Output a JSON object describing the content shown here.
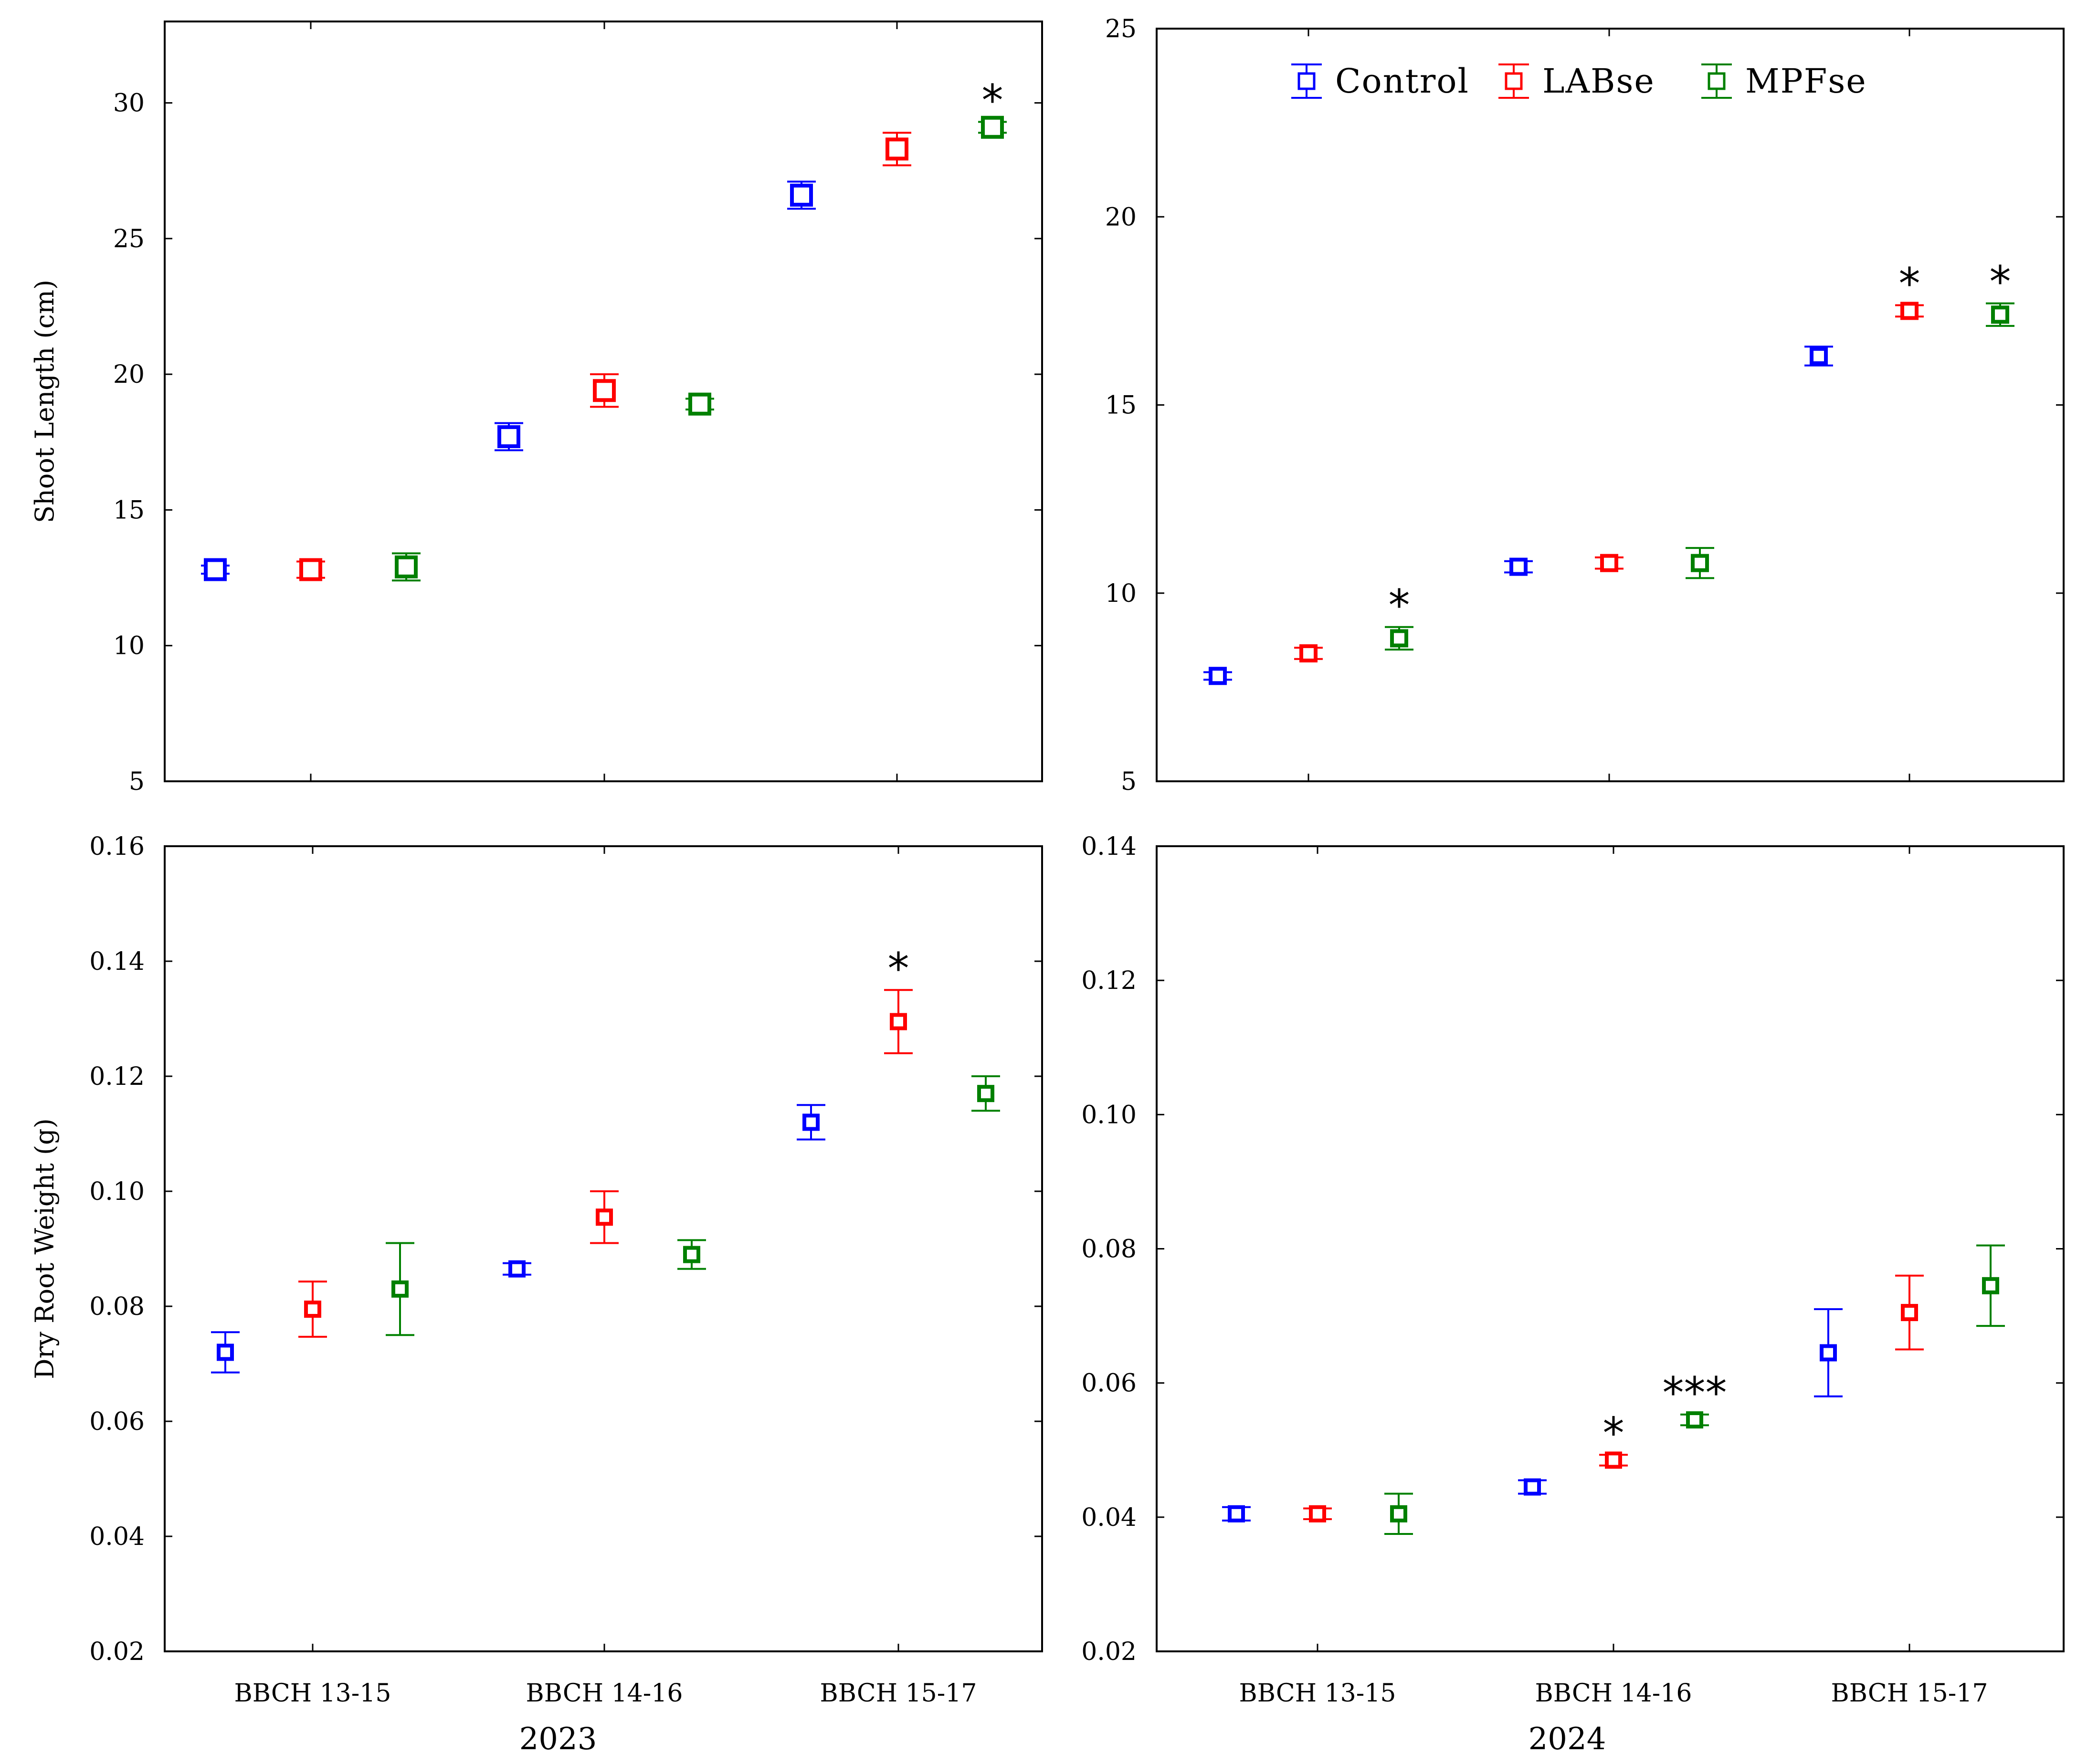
{
  "colors": {
    "Control": "#0000ff",
    "LABse": "#ff0000",
    "MPFse": "#008000",
    "axis": "#000000"
  },
  "legend": [
    "Control",
    "LABse",
    "MPFse"
  ],
  "chart_data": [
    {
      "id": "p2023_shoot",
      "type": "scatter",
      "ylabel": "Shoot Length (cm)",
      "ylim": [
        5,
        33
      ],
      "yticks": [
        5,
        10,
        15,
        20,
        25,
        30
      ],
      "categories": [
        "BBCH 13-15",
        "BBCH 14-16",
        "BBCH 15-17"
      ],
      "series": [
        {
          "name": "Control",
          "values": [
            12.8,
            17.7,
            26.6
          ],
          "err": [
            0.15,
            0.5,
            0.5
          ],
          "sig": [
            "",
            "",
            ""
          ]
        },
        {
          "name": "LABse",
          "values": [
            12.8,
            19.4,
            28.3
          ],
          "err": [
            0.3,
            0.6,
            0.6
          ],
          "sig": [
            "",
            "",
            ""
          ]
        },
        {
          "name": "MPFse",
          "values": [
            12.9,
            18.9,
            29.1
          ],
          "err": [
            0.5,
            0.2,
            0.2
          ],
          "sig": [
            "",
            "",
            "*"
          ]
        }
      ]
    },
    {
      "id": "p2024_shoot",
      "type": "scatter",
      "ylabel": "",
      "ylim": [
        5,
        25
      ],
      "yticks": [
        5,
        10,
        15,
        20,
        25
      ],
      "categories": [
        "BBCH 13-15",
        "BBCH 14-16",
        "BBCH 15-17"
      ],
      "series": [
        {
          "name": "Control",
          "values": [
            7.8,
            10.7,
            16.3
          ],
          "err": [
            0.1,
            0.15,
            0.25
          ],
          "sig": [
            "",
            "",
            ""
          ]
        },
        {
          "name": "LABse",
          "values": [
            8.4,
            10.8,
            17.5
          ],
          "err": [
            0.15,
            0.15,
            0.15
          ],
          "sig": [
            "",
            "",
            "*"
          ]
        },
        {
          "name": "MPFse",
          "values": [
            8.8,
            10.8,
            17.4
          ],
          "err": [
            0.3,
            0.4,
            0.3
          ],
          "sig": [
            "*",
            "",
            "*"
          ]
        }
      ]
    },
    {
      "id": "p2023_root",
      "type": "scatter",
      "ylabel": "Dry Root Weight (g)",
      "xlabel": "2023",
      "ylim": [
        0.02,
        0.16
      ],
      "yticks": [
        0.02,
        0.04,
        0.06,
        0.08,
        0.1,
        0.12,
        0.14,
        0.16
      ],
      "categories": [
        "BBCH 13-15",
        "BBCH 14-16",
        "BBCH 15-17"
      ],
      "series": [
        {
          "name": "Control",
          "values": [
            0.072,
            0.0865,
            0.112
          ],
          "err": [
            0.0035,
            0.001,
            0.003
          ],
          "sig": [
            "",
            "",
            ""
          ]
        },
        {
          "name": "LABse",
          "values": [
            0.0795,
            0.0955,
            0.1295
          ],
          "err": [
            0.0048,
            0.0045,
            0.0055
          ],
          "sig": [
            "",
            "",
            "*"
          ]
        },
        {
          "name": "MPFse",
          "values": [
            0.083,
            0.089,
            0.117
          ],
          "err": [
            0.008,
            0.0025,
            0.003
          ],
          "sig": [
            "",
            "",
            ""
          ]
        }
      ]
    },
    {
      "id": "p2024_root",
      "type": "scatter",
      "ylabel": "",
      "xlabel": "2024",
      "ylim": [
        0.02,
        0.14
      ],
      "yticks": [
        0.02,
        0.04,
        0.06,
        0.08,
        0.1,
        0.12,
        0.14
      ],
      "categories": [
        "BBCH 13-15",
        "BBCH 14-16",
        "BBCH 15-17"
      ],
      "series": [
        {
          "name": "Control",
          "values": [
            0.0405,
            0.0445,
            0.0645
          ],
          "err": [
            0.001,
            0.001,
            0.0065
          ],
          "sig": [
            "",
            "",
            ""
          ]
        },
        {
          "name": "LABse",
          "values": [
            0.0405,
            0.0485,
            0.0705
          ],
          "err": [
            0.0008,
            0.0008,
            0.0055
          ],
          "sig": [
            "",
            "*",
            ""
          ]
        },
        {
          "name": "MPFse",
          "values": [
            0.0405,
            0.0545,
            0.0745
          ],
          "err": [
            0.003,
            0.0008,
            0.006
          ],
          "sig": [
            "",
            "***",
            ""
          ]
        }
      ]
    }
  ]
}
